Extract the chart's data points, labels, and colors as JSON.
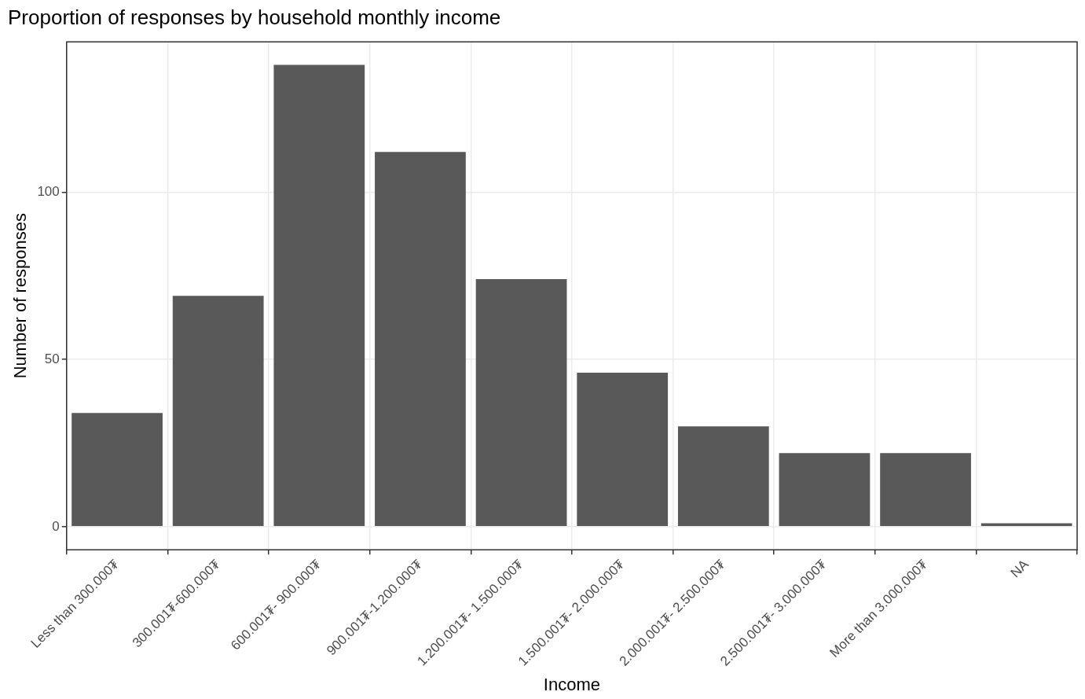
{
  "chart_data": {
    "type": "bar",
    "title": "Proportion of responses by household monthly income",
    "xlabel": "Income",
    "ylabel": "Number of responses",
    "categories": [
      "Less than 300.000₮",
      "300.001₮-600.000₮",
      "600.001₮- 900.000₮",
      "900.001₮-1.200.000₮",
      "1.200.001₮- 1.500.000₮",
      "1.500.001₮- 2.000.000₮",
      "2.000.001₮- 2.500.000₮",
      "2.500.001₮- 3.000.000₮",
      "More than 3.000.000₮",
      "NA"
    ],
    "values": [
      34,
      69,
      138,
      112,
      74,
      46,
      30,
      22,
      22,
      1
    ],
    "color": "#595959",
    "ylim": [
      -6.9,
      144.9
    ],
    "yticks": [
      0,
      50,
      100
    ],
    "grid": true,
    "legend": false
  }
}
